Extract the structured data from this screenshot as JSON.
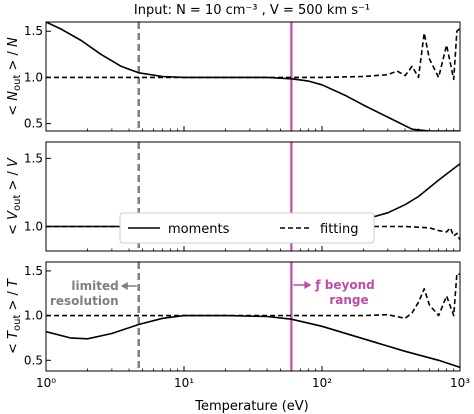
{
  "figure": {
    "title": "Input: N = 10 cm⁻³ , V = 500 km s⁻¹",
    "xlabel": "Temperature (eV)"
  },
  "legend": {
    "moments": "moments",
    "fitting": "fitting"
  },
  "annotations": {
    "limited_resolution": [
      "limited",
      "resolution"
    ],
    "f_beyond_range": [
      "ƒ beyond",
      "range"
    ]
  },
  "markers": {
    "resolution_temperature": 4.7,
    "range_temperature": 60,
    "resolution_color": "#7f7f7f",
    "range_color": "#c04aa8"
  },
  "chart_data": [
    {
      "type": "line",
      "ylabel": "< N_out > / N",
      "xlim": [
        1,
        1000
      ],
      "xscale": "log",
      "ylim": [
        0.42,
        1.6
      ],
      "xticks": [
        "10⁰",
        "10¹",
        "10²",
        "10³"
      ],
      "yticks": [
        "0.5",
        "1.0",
        "1.5"
      ],
      "series": [
        {
          "name": "moments",
          "style": "solid",
          "x": [
            1,
            1.3,
            1.8,
            2.5,
            3.5,
            4.7,
            7,
            10,
            20,
            40,
            60,
            80,
            100,
            150,
            200,
            300,
            450,
            600,
            1000
          ],
          "y": [
            1.6,
            1.52,
            1.4,
            1.25,
            1.12,
            1.05,
            1.01,
            1.0,
            1.0,
            1.0,
            0.985,
            0.96,
            0.92,
            0.8,
            0.7,
            0.57,
            0.44,
            0.42,
            0.42
          ]
        },
        {
          "name": "fitting",
          "style": "dashed",
          "x": [
            1,
            5,
            10,
            30,
            60,
            100,
            200,
            300,
            350,
            400,
            450,
            500,
            550,
            600,
            700,
            800,
            900,
            950,
            1000
          ],
          "y": [
            1.0,
            1.0,
            1.0,
            1.0,
            1.0,
            1.0,
            1.01,
            1.03,
            1.07,
            1.02,
            1.12,
            1.0,
            1.48,
            1.2,
            1.0,
            1.35,
            0.98,
            1.5,
            1.53
          ]
        }
      ]
    },
    {
      "type": "line",
      "ylabel": "< V_out > / V",
      "xlim": [
        1,
        1000
      ],
      "xscale": "log",
      "ylim": [
        0.82,
        1.62
      ],
      "xticks": [
        "10⁰",
        "10¹",
        "10²",
        "10³"
      ],
      "yticks": [
        "1.0",
        "1.5"
      ],
      "series": [
        {
          "name": "moments",
          "style": "solid",
          "x": [
            1,
            10,
            60,
            100,
            150,
            200,
            300,
            400,
            500,
            700,
            1000
          ],
          "y": [
            1.0,
            1.0,
            1.0,
            1.01,
            1.03,
            1.05,
            1.1,
            1.16,
            1.22,
            1.34,
            1.46
          ]
        },
        {
          "name": "fitting",
          "style": "dashed",
          "x": [
            1,
            10,
            60,
            100,
            200,
            400,
            600,
            700,
            800,
            850,
            900,
            950,
            1000
          ],
          "y": [
            1.0,
            1.0,
            1.0,
            1.0,
            1.0,
            1.0,
            0.99,
            0.97,
            0.96,
            0.99,
            0.93,
            0.95,
            0.9
          ]
        }
      ]
    },
    {
      "type": "line",
      "ylabel": "< T_out > / T",
      "xlim": [
        1,
        1000
      ],
      "xscale": "log",
      "ylim": [
        0.38,
        1.6
      ],
      "xticks": [
        "10⁰",
        "10¹",
        "10²",
        "10³"
      ],
      "yticks": [
        "0.5",
        "1.0",
        "1.5"
      ],
      "series": [
        {
          "name": "moments",
          "style": "solid",
          "x": [
            1,
            1.5,
            2,
            3,
            4.7,
            7,
            10,
            20,
            40,
            60,
            100,
            200,
            400,
            700,
            1000
          ],
          "y": [
            0.82,
            0.75,
            0.74,
            0.8,
            0.9,
            0.97,
            1.0,
            1.0,
            0.99,
            0.96,
            0.88,
            0.74,
            0.6,
            0.5,
            0.42
          ]
        },
        {
          "name": "fitting",
          "style": "dashed",
          "x": [
            1,
            10,
            60,
            100,
            200,
            300,
            400,
            450,
            500,
            550,
            600,
            700,
            800,
            900,
            950,
            1000
          ],
          "y": [
            1.0,
            1.0,
            1.0,
            1.0,
            1.0,
            1.01,
            0.97,
            1.03,
            1.15,
            1.3,
            1.12,
            1.0,
            1.22,
            1.0,
            1.47,
            1.46
          ]
        }
      ]
    }
  ]
}
